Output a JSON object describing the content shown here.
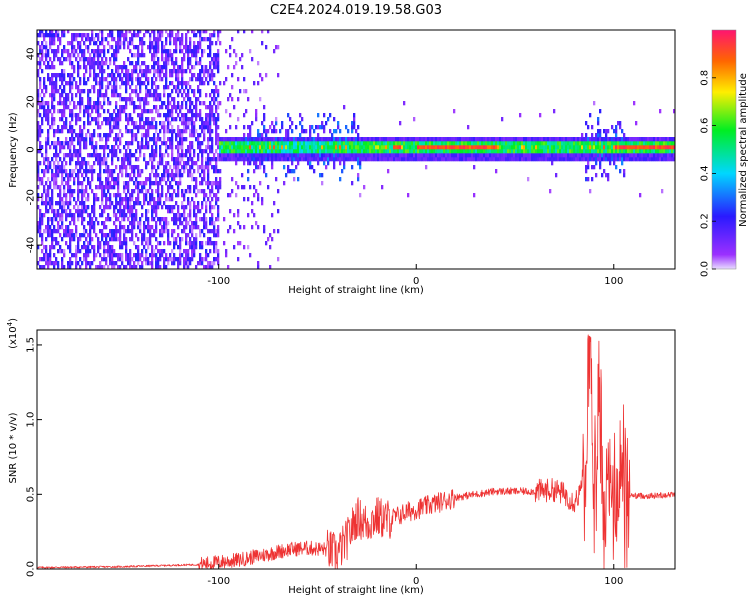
{
  "figure": {
    "title": "C2E4.2024.019.19.58.G03"
  },
  "chart_data": [
    {
      "type": "heatmap",
      "xlabel": "Height of straight line (km)",
      "ylabel": "Frequency (Hz)",
      "xlim": [
        -192,
        131
      ],
      "ylim": [
        -50,
        50
      ],
      "xticks": [
        -100,
        0,
        100
      ],
      "yticks": [
        -40,
        -20,
        0,
        20,
        40
      ],
      "colorbar": {
        "label": "Normalized spectral amplitude",
        "ticks": [
          "0.0",
          "0.2",
          "0.4",
          "0.6",
          "0.8"
        ],
        "range": [
          0,
          1
        ],
        "colormap": "rainbow (violet-blue-cyan-green-yellow-red)"
      },
      "features": {
        "noise_region_x": [
          -192,
          -100
        ],
        "scatter_region_x": [
          -100,
          -70
        ],
        "signal_band_x": [
          -100,
          131
        ],
        "signal_band_center_hz": 0,
        "signal_band_halfwidth_hz": 3,
        "broadband_bursts_x": [
          [
            -88,
            -28
          ],
          [
            85,
            105
          ]
        ],
        "peak_amplitude_x": [
          [
            -12,
            -8
          ],
          [
            0,
            40
          ],
          [
            100,
            131
          ]
        ]
      }
    },
    {
      "type": "line",
      "xlabel": "Height of straight line (km)",
      "ylabel": "SNR (10 * v/v)",
      "multiplier_label": "(x10",
      "multiplier_exp": "4",
      "xlim": [
        -192,
        131
      ],
      "ylim": [
        0,
        1.6
      ],
      "xticks": [
        -100,
        0,
        100
      ],
      "yticks": [
        "0.0",
        "0.5",
        "1.0",
        "1.5"
      ],
      "series": [
        {
          "color": "#ee3333",
          "x": [
            -192,
            -150,
            -110,
            -90,
            -75,
            -65,
            -55,
            -45,
            -40,
            -35,
            -30,
            -25,
            -20,
            -15,
            -10,
            -5,
            0,
            10,
            20,
            30,
            40,
            50,
            60,
            70,
            75,
            80,
            85,
            88,
            90,
            93,
            95,
            98,
            100,
            103,
            106,
            110,
            120,
            131
          ],
          "y": [
            0.01,
            0.015,
            0.03,
            0.06,
            0.1,
            0.13,
            0.14,
            0.13,
            0.1,
            0.2,
            0.35,
            0.3,
            0.35,
            0.33,
            0.35,
            0.38,
            0.4,
            0.44,
            0.48,
            0.5,
            0.52,
            0.52,
            0.52,
            0.53,
            0.5,
            0.45,
            0.55,
            1.55,
            0.4,
            1.1,
            0.3,
            0.8,
            0.35,
            0.7,
            0.5,
            0.49,
            0.49,
            0.5
          ],
          "noise_envelope": [
            {
              "x0": -192,
              "x1": -110,
              "amp": 0.006
            },
            {
              "x0": -110,
              "x1": -45,
              "amp": 0.05
            },
            {
              "x0": -45,
              "x1": -12,
              "amp": 0.14
            },
            {
              "x0": -12,
              "x1": 20,
              "amp": 0.07
            },
            {
              "x0": 20,
              "x1": 60,
              "amp": 0.025
            },
            {
              "x0": 60,
              "x1": 84,
              "amp": 0.08
            },
            {
              "x0": 84,
              "x1": 108,
              "amp": 0.45
            },
            {
              "x0": 108,
              "x1": 131,
              "amp": 0.02
            }
          ]
        }
      ]
    }
  ]
}
